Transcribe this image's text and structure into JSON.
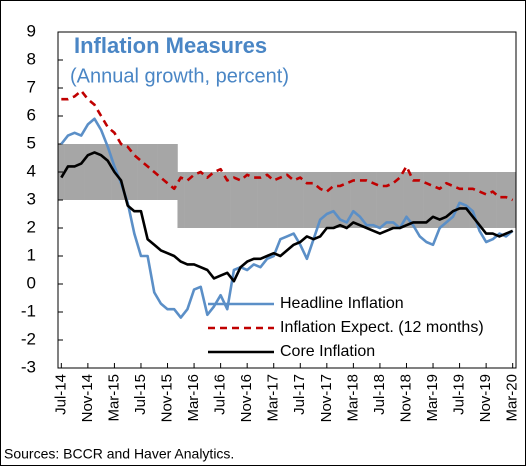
{
  "chart_data": {
    "type": "line",
    "title": "Inflation Measures",
    "subtitle": "(Annual growth, percent)",
    "source": "Sources:  BCCR and Haver Analytics.",
    "categories": [
      "Jul-14",
      null,
      null,
      null,
      "Nov-14",
      null,
      null,
      null,
      "Mar-15",
      null,
      null,
      null,
      "Jul-15",
      null,
      null,
      null,
      "Nov-15",
      null,
      null,
      null,
      "Mar-16",
      null,
      null,
      null,
      "Jul-16",
      null,
      null,
      null,
      "Nov-16",
      null,
      null,
      null,
      "Mar-17",
      null,
      null,
      null,
      "Jul-17",
      null,
      null,
      null,
      "Nov-17",
      null,
      null,
      null,
      "Mar-18",
      null,
      null,
      null,
      "Jul-18",
      null,
      null,
      null,
      "Nov-18",
      null,
      null,
      null,
      "Mar-19",
      null,
      null,
      null,
      "Jul-19",
      null,
      null,
      null,
      "Nov-19",
      null,
      null,
      null,
      "Mar-20"
    ],
    "series": [
      {
        "name": "Headline Inflation",
        "color": "#5b8fc7",
        "dashed": false,
        "values": [
          5.0,
          5.3,
          5.4,
          5.3,
          5.7,
          5.9,
          5.5,
          4.9,
          4.2,
          3.6,
          2.9,
          1.8,
          1.0,
          1.0,
          -0.3,
          -0.7,
          -0.9,
          -0.9,
          -1.2,
          -0.9,
          -0.2,
          -0.1,
          -1.1,
          -0.8,
          -0.4,
          -0.9,
          0.5,
          0.6,
          0.5,
          0.7,
          0.6,
          0.9,
          1.0,
          1.6,
          1.7,
          1.8,
          1.4,
          0.9,
          1.6,
          2.3,
          2.5,
          2.6,
          2.3,
          2.2,
          2.6,
          2.4,
          2.1,
          2.1,
          2.0,
          2.2,
          2.2,
          2.0,
          2.4,
          2.1,
          1.7,
          1.5,
          1.4,
          2.0,
          2.2,
          2.4,
          2.9,
          2.8,
          2.6,
          1.9,
          1.5,
          1.6,
          1.8,
          1.7,
          1.9
        ]
      },
      {
        "name": "Inflation Expect. (12 months)",
        "color": "#c00000",
        "dashed": true,
        "values": [
          6.6,
          6.6,
          6.7,
          6.9,
          6.6,
          6.4,
          6.0,
          5.6,
          5.4,
          5.0,
          4.9,
          4.6,
          4.4,
          4.2,
          4.0,
          3.8,
          3.6,
          3.4,
          3.8,
          3.7,
          3.9,
          4.0,
          3.8,
          4.0,
          4.1,
          3.7,
          3.8,
          3.7,
          3.9,
          3.8,
          3.8,
          3.9,
          3.7,
          3.8,
          3.9,
          3.7,
          3.8,
          3.6,
          3.6,
          3.4,
          3.3,
          3.5,
          3.5,
          3.6,
          3.7,
          3.7,
          3.7,
          3.6,
          3.5,
          3.5,
          3.6,
          3.8,
          4.2,
          3.7,
          3.7,
          3.6,
          3.5,
          3.4,
          3.6,
          3.5,
          3.4,
          3.4,
          3.4,
          3.3,
          3.2,
          3.3,
          3.1,
          3.1,
          3.0
        ]
      },
      {
        "name": "Core Inflation",
        "color": "#000000",
        "dashed": false,
        "values": [
          3.8,
          4.2,
          4.2,
          4.3,
          4.6,
          4.7,
          4.6,
          4.4,
          4.0,
          3.7,
          2.8,
          2.6,
          2.6,
          1.6,
          1.4,
          1.2,
          1.1,
          1.0,
          0.8,
          0.7,
          0.7,
          0.6,
          0.5,
          0.2,
          0.3,
          0.4,
          0.1,
          0.6,
          0.8,
          0.9,
          0.9,
          1.0,
          1.1,
          1.0,
          1.2,
          1.4,
          1.5,
          1.7,
          1.6,
          1.7,
          2.0,
          2.0,
          2.1,
          2.0,
          2.2,
          2.1,
          2.0,
          1.9,
          1.8,
          1.9,
          2.0,
          2.0,
          2.1,
          2.2,
          2.2,
          2.2,
          2.4,
          2.3,
          2.4,
          2.6,
          2.7,
          2.7,
          2.4,
          2.1,
          1.8,
          1.8,
          1.7,
          1.8,
          1.9
        ]
      }
    ],
    "target_band": {
      "color": "#a6a6a6",
      "lower": [
        3,
        3,
        3,
        3,
        3,
        3,
        3,
        3,
        3,
        3,
        3,
        3,
        3,
        3,
        3,
        3,
        3,
        3,
        2,
        2,
        2,
        2,
        2,
        2,
        2,
        2,
        2,
        2,
        2,
        2,
        2,
        2,
        2,
        2,
        2,
        2,
        2,
        2,
        2,
        2,
        2,
        2,
        2,
        2,
        2,
        2,
        2,
        2,
        2,
        2,
        2,
        2,
        2,
        2,
        2,
        2,
        2,
        2,
        2,
        2,
        2,
        2,
        2,
        2,
        2,
        2,
        2,
        2,
        2
      ],
      "upper": [
        5,
        5,
        5,
        5,
        5,
        5,
        5,
        5,
        5,
        5,
        5,
        5,
        5,
        5,
        5,
        5,
        5,
        5,
        4,
        4,
        4,
        4,
        4,
        4,
        4,
        4,
        4,
        4,
        4,
        4,
        4,
        4,
        4,
        4,
        4,
        4,
        4,
        4,
        4,
        4,
        4,
        4,
        4,
        4,
        4,
        4,
        4,
        4,
        4,
        4,
        4,
        4,
        4,
        4,
        4,
        4,
        4,
        4,
        4,
        4,
        4,
        4,
        4,
        4,
        4,
        4,
        4,
        4,
        4
      ]
    },
    "ylim": [
      -3,
      9
    ],
    "yticks": [
      -3,
      -2,
      -1,
      0,
      1,
      2,
      3,
      4,
      5,
      6,
      7,
      8,
      9
    ],
    "grid": false,
    "legend": "lower right"
  }
}
